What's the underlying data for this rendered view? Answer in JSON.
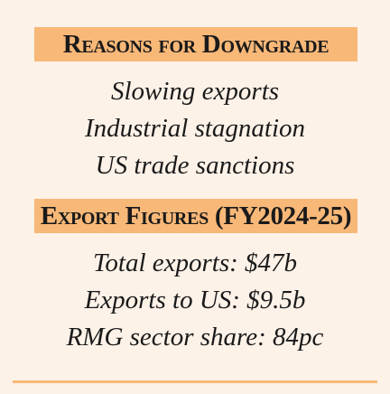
{
  "sections": [
    {
      "heading": "Reasons for Downgrade",
      "items": [
        "Slowing exports",
        "Industrial stagnation",
        "US trade sanctions"
      ]
    },
    {
      "heading": "Export Figures (FY2024-25)",
      "items": [
        "Total exports: $47b",
        "Exports to US: $9.5b",
        "RMG sector share: 84pc"
      ]
    }
  ]
}
